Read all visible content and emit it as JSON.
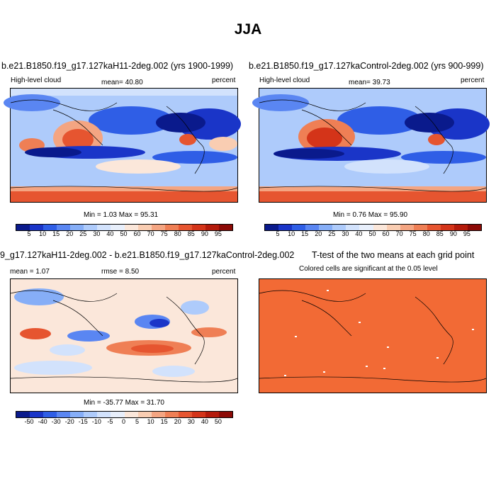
{
  "figure": {
    "title": "JJA"
  },
  "panels": {
    "top_left": {
      "title": "b.e21.B1850.f19_g17.127kaH11-2deg.002 (yrs 1900-1999)",
      "variable": "High-level cloud",
      "stat": "mean=  40.80",
      "units": "percent",
      "minmax": "Min =  1.03 Max = 95.31"
    },
    "top_right": {
      "title": "b.e21.B1850.f19_g17.127kaControl-2deg.002 (yrs 900-999)",
      "variable": "High-level cloud",
      "stat": "mean=  39.73",
      "units": "percent",
      "minmax": "Min =  0.76 Max = 95.90"
    },
    "bottom_left": {
      "title": "9_g17.127kaH11-2deg.002 - b.e21.B1850.f19_g17.127kaControl-2deg.002",
      "mean": "mean =   1.07",
      "rmse": "rmse =   8.50",
      "units": "percent",
      "minmax": "Min = -35.77 Max = 31.70"
    },
    "bottom_right": {
      "title": "T-test of the two means at each grid point",
      "subtitle": "Colored cells are significant at the 0.05 level",
      "fill_color": "#F26A35"
    }
  },
  "colorbars": {
    "absolute": {
      "labels": [
        "5",
        "10",
        "15",
        "20",
        "25",
        "30",
        "40",
        "50",
        "60",
        "70",
        "75",
        "80",
        "85",
        "90",
        "95"
      ],
      "colors": [
        "#0a1a8c",
        "#1a35c8",
        "#2f5ee6",
        "#5a86f2",
        "#86aef7",
        "#aecbfb",
        "#d2e2fc",
        "#e8effb",
        "#fbe7da",
        "#f9cdb2",
        "#f4a582",
        "#ef7f55",
        "#e65530",
        "#d43419",
        "#b41a0b",
        "#8c0a06"
      ]
    },
    "difference": {
      "labels": [
        "-50",
        "-40",
        "-30",
        "-20",
        "-15",
        "-10",
        "-5",
        "0",
        "5",
        "10",
        "15",
        "20",
        "30",
        "40",
        "50"
      ],
      "colors": [
        "#0a1a8c",
        "#1a35c8",
        "#2f5ee6",
        "#5a86f2",
        "#86aef7",
        "#aecbfb",
        "#d2e2fc",
        "#e8effb",
        "#fbe7da",
        "#f9cdb2",
        "#f4a582",
        "#ef7f55",
        "#e65530",
        "#d43419",
        "#b41a0b",
        "#8c0a06"
      ]
    }
  }
}
